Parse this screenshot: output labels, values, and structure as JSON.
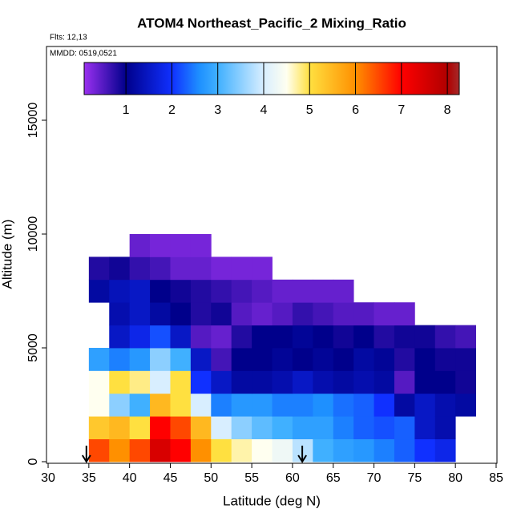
{
  "chart_data": {
    "type": "heatmap",
    "title": "ATOM4 Northeast_Pacific_2 Mixing_Ratio",
    "annotations": [
      "Flts: 12,13",
      "MMDD: 0519,0521"
    ],
    "x_label": "Latitude (deg N)",
    "y_label": "Altitude (m)",
    "xlim": [
      29.8,
      85.1
    ],
    "xticks": [
      30,
      35,
      40,
      45,
      50,
      55,
      60,
      65,
      70,
      75,
      80,
      85
    ],
    "ylim": [
      -70,
      18240
    ],
    "yticks": [
      0,
      5000,
      10000,
      15000
    ],
    "x_edges": [
      35,
      37.5,
      40,
      42.5,
      45,
      47.5,
      50,
      52.5,
      55,
      57.5,
      60,
      62.5,
      65,
      67.5,
      70,
      72.5,
      75,
      77.5,
      80,
      82.5
    ],
    "y_edges": [
      0,
      1000,
      2000,
      3000,
      4000,
      5000,
      6000,
      7000,
      8000,
      9000,
      10000
    ],
    "values": [
      [
        6.5,
        6,
        6.5,
        7.5,
        7,
        6,
        5,
        4.7,
        4.5,
        4.3,
        3.8,
        3,
        2.8,
        2.7,
        2.5,
        2.3,
        2,
        1.8,
        null
      ],
      [
        5.3,
        5.5,
        5,
        7,
        6.5,
        5.5,
        4,
        3.5,
        3.2,
        3,
        2.8,
        2.8,
        2.5,
        2.3,
        2.2,
        2.3,
        1.5,
        1.3,
        null
      ],
      [
        4.5,
        3.5,
        3,
        5.5,
        5,
        4,
        2.5,
        2.7,
        2.7,
        2.5,
        2.5,
        2.6,
        2.4,
        2.3,
        2,
        1.2,
        1.5,
        1.3,
        1.2
      ],
      [
        4.5,
        5,
        4.8,
        4,
        5,
        2,
        1.5,
        1.2,
        1.2,
        1.3,
        1.5,
        1.3,
        1.2,
        1.3,
        1.2,
        0.5,
        1,
        1,
        0.9
      ],
      [
        2.8,
        2.5,
        2.7,
        3.5,
        3,
        1.5,
        0.6,
        1,
        1,
        1.1,
        1,
        1.1,
        1,
        1.2,
        1.1,
        0.8,
        1,
        0.9,
        0.9
      ],
      [
        null,
        1.5,
        1.8,
        2.2,
        1.5,
        0.5,
        0.4,
        0.8,
        1,
        1,
        1.1,
        1,
        0.9,
        1,
        0.8,
        0.9,
        0.9,
        0.7,
        0.6
      ],
      [
        null,
        1.3,
        1.5,
        1.2,
        1,
        0.8,
        0.9,
        0.5,
        0.4,
        0.5,
        0.7,
        0.6,
        0.5,
        0.5,
        0.4,
        0.4,
        null,
        null,
        null
      ],
      [
        1.2,
        1.4,
        1.5,
        1,
        0.9,
        0.8,
        0.7,
        0.6,
        0.5,
        0.4,
        0.4,
        0.4,
        0.4,
        null,
        null,
        null,
        null,
        null,
        null
      ],
      [
        0.8,
        0.9,
        0.7,
        0.6,
        0.4,
        0.4,
        0.3,
        0.3,
        0.3,
        null,
        null,
        null,
        null,
        null,
        null,
        null,
        null,
        null,
        null
      ],
      [
        null,
        null,
        0.4,
        0.3,
        0.3,
        0.3,
        null,
        null,
        null,
        null,
        null,
        null,
        null,
        null,
        null,
        null,
        null,
        null,
        null
      ]
    ],
    "arrows_x": [
      34.7,
      61.2
    ],
    "colorbar": {
      "lim": [
        0.09,
        8.26
      ],
      "ticks": [
        1,
        2,
        3,
        4,
        5,
        6,
        7,
        8
      ],
      "stops": [
        [
          0.09,
          "#9a30f0"
        ],
        [
          1,
          "#00008b"
        ],
        [
          2,
          "#1030ff"
        ],
        [
          2.6,
          "#1e90ff"
        ],
        [
          3,
          "#40b0ff"
        ],
        [
          4,
          "#d8eeff"
        ],
        [
          4.5,
          "#fffff0"
        ],
        [
          5,
          "#ffe040"
        ],
        [
          6,
          "#ff9000"
        ],
        [
          7,
          "#ff0000"
        ],
        [
          8,
          "#b00000"
        ],
        [
          8.26,
          "#a52a2a"
        ]
      ]
    }
  }
}
